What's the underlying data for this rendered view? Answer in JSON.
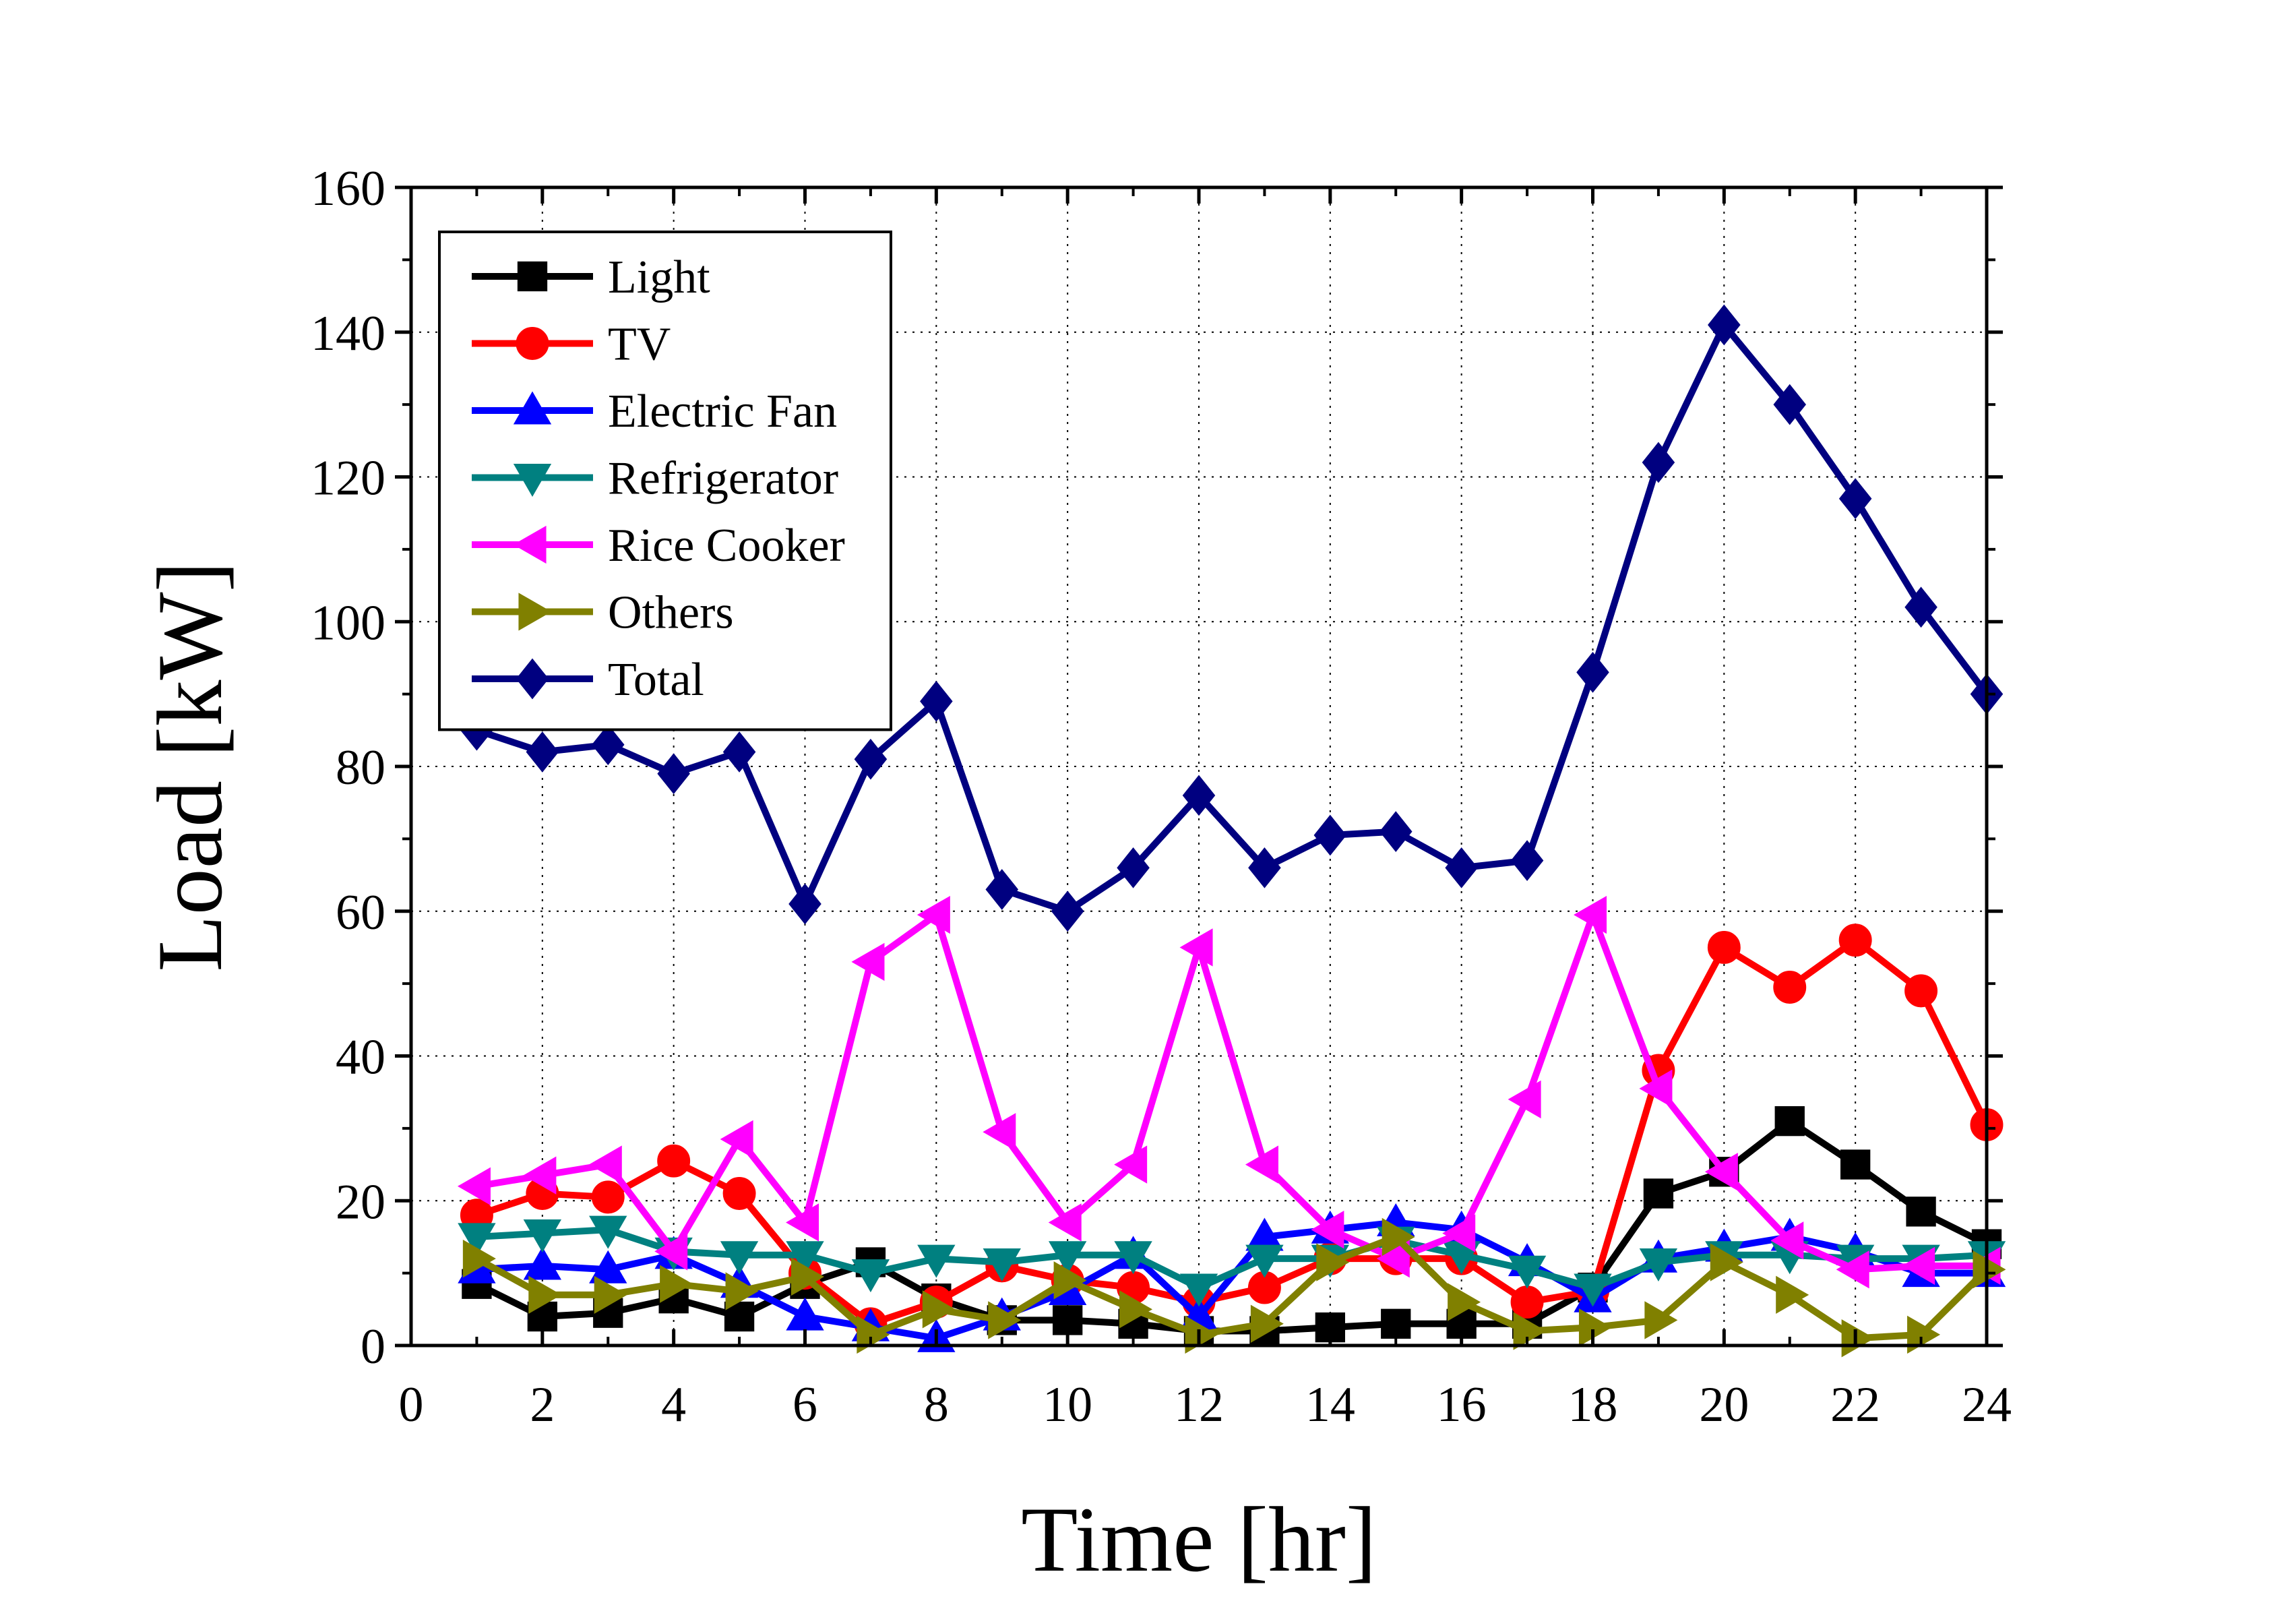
{
  "chart_data": {
    "type": "line",
    "title": "",
    "xlabel": "Time [hr]",
    "ylabel": "Load [kW]",
    "xlim": [
      0,
      24
    ],
    "ylim": [
      0,
      160
    ],
    "xticks": [
      0,
      2,
      4,
      6,
      8,
      10,
      12,
      14,
      16,
      18,
      20,
      22,
      24
    ],
    "yticks": [
      0,
      20,
      40,
      60,
      80,
      100,
      120,
      140,
      160
    ],
    "grid": true,
    "legend_position": "top-left",
    "x": [
      1,
      2,
      3,
      4,
      5,
      6,
      7,
      8,
      9,
      10,
      11,
      12,
      13,
      14,
      15,
      16,
      17,
      18,
      19,
      20,
      21,
      22,
      23,
      24
    ],
    "series": [
      {
        "name": "Light",
        "color": "#000000",
        "marker": "square",
        "values": [
          8.5,
          4,
          4.5,
          6.5,
          4,
          8.5,
          11.5,
          6.5,
          3.5,
          3.5,
          3,
          2,
          2,
          2.5,
          3,
          3,
          3,
          8,
          21,
          24,
          31,
          25,
          18.5,
          14
        ]
      },
      {
        "name": "TV",
        "color": "#ff0000",
        "marker": "circle",
        "values": [
          18,
          21,
          20.5,
          25.5,
          21,
          10,
          3,
          6,
          11,
          9,
          8,
          6,
          8,
          12,
          12,
          12,
          6,
          7.5,
          38,
          55,
          49.5,
          56,
          49,
          30.5
        ]
      },
      {
        "name": "Electric Fan",
        "color": "#0000ff",
        "marker": "triangle-up",
        "values": [
          10.5,
          11,
          10.5,
          12.5,
          8.5,
          4,
          2.5,
          1,
          4,
          7.5,
          12.5,
          4,
          15,
          16,
          17,
          16,
          11.5,
          6.5,
          12,
          13.5,
          15,
          13,
          10,
          10
        ]
      },
      {
        "name": "Refrigerator",
        "color": "#008080",
        "marker": "triangle-down",
        "values": [
          15,
          15.5,
          16,
          13,
          12.5,
          12.5,
          10,
          12,
          11.5,
          12.5,
          12.5,
          8,
          12,
          12,
          14.5,
          12.5,
          10.5,
          8,
          11.5,
          12.5,
          12.5,
          12,
          12,
          12.5
        ]
      },
      {
        "name": "Rice Cooker",
        "color": "#ff00ff",
        "marker": "triangle-left",
        "values": [
          22,
          23.5,
          25,
          13,
          28.5,
          17,
          53,
          59.5,
          29.5,
          17,
          25,
          55,
          25,
          16,
          12,
          15.5,
          34,
          59.5,
          35.5,
          24,
          14.5,
          10.5,
          11,
          11
        ]
      },
      {
        "name": "Others",
        "color": "#808000",
        "marker": "triangle-right",
        "values": [
          12,
          7,
          7,
          8.5,
          7.5,
          9.5,
          1.5,
          5,
          3.5,
          9,
          5,
          1.5,
          3,
          11.5,
          15,
          6,
          2,
          2.5,
          3.5,
          11.5,
          7,
          1,
          1.5,
          10.5
        ]
      },
      {
        "name": "Total",
        "color": "#000080",
        "marker": "diamond",
        "values": [
          85,
          82,
          83,
          79,
          82,
          61,
          81,
          89,
          63,
          60,
          66,
          76,
          66,
          70.5,
          71,
          66,
          67,
          93,
          122,
          141,
          130,
          117,
          102,
          90
        ]
      }
    ]
  }
}
